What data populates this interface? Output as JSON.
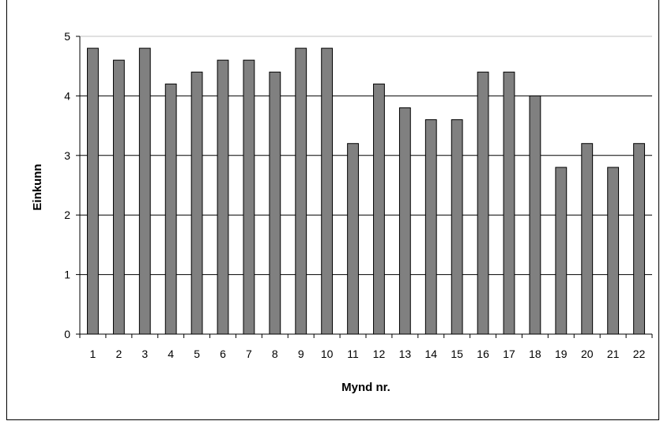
{
  "chart_data": {
    "type": "bar",
    "title": "",
    "xlabel": "Mynd nr.",
    "ylabel": "Einkunn",
    "ylim": [
      0,
      5
    ],
    "yticks": [
      "0",
      "1",
      "2",
      "3",
      "4",
      "5"
    ],
    "grid": true,
    "legend": "none",
    "categories": [
      "1",
      "2",
      "3",
      "4",
      "5",
      "6",
      "7",
      "8",
      "9",
      "10",
      "11",
      "12",
      "13",
      "14",
      "15",
      "16",
      "17",
      "18",
      "19",
      "20",
      "21",
      "22"
    ],
    "values": [
      4.8,
      4.6,
      4.8,
      4.2,
      4.4,
      4.6,
      4.6,
      4.4,
      4.8,
      4.8,
      3.2,
      4.2,
      3.8,
      3.6,
      3.6,
      4.4,
      4.4,
      4.0,
      2.8,
      3.2,
      2.8,
      3.2
    ],
    "bar_color": "#808080"
  }
}
